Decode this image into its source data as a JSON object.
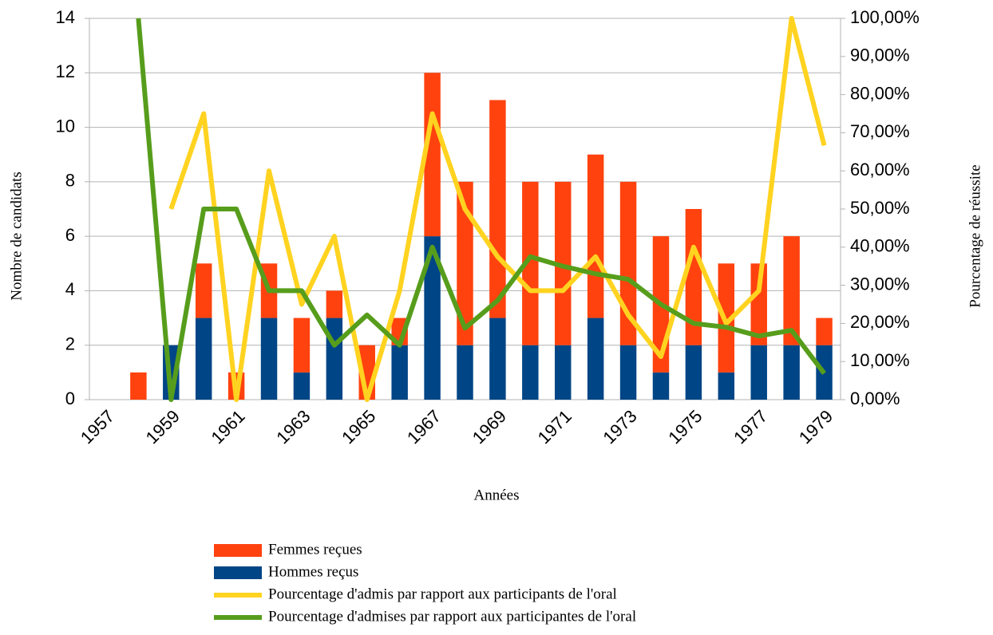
{
  "chart_data": {
    "type": "bar",
    "stacked": true,
    "xlabel": "Années",
    "ylabel": "Nombre de candidats",
    "y2label": "Pourcentage de réussite",
    "categories": [
      "1957",
      null,
      "1959",
      null,
      "1961",
      null,
      "1963",
      null,
      "1965",
      null,
      "1967",
      null,
      "1969",
      null,
      "1971",
      null,
      "1973",
      null,
      "1975",
      null,
      "1977",
      null,
      "1979"
    ],
    "series": [
      {
        "name": "Femmes reçues",
        "type": "bar",
        "color": "#ff420e",
        "values": [
          0,
          1,
          0,
          2,
          1,
          2,
          2,
          1,
          2,
          1,
          6,
          6,
          8,
          6,
          6,
          6,
          6,
          5,
          5,
          4,
          3,
          4,
          1
        ]
      },
      {
        "name": "Hommes reçus",
        "type": "bar",
        "color": "#004586",
        "values": [
          0,
          0,
          2,
          3,
          0,
          3,
          1,
          3,
          0,
          2,
          6,
          2,
          3,
          2,
          2,
          3,
          2,
          1,
          2,
          1,
          2,
          2,
          2
        ]
      },
      {
        "name": "Pourcentage d'admis par rapport aux participants de l'oral",
        "type": "line",
        "axis": "y2",
        "color": "#ffd320",
        "values": [
          null,
          null,
          50,
          75,
          0,
          60,
          25,
          42.86,
          0,
          28.57,
          75,
          50,
          37.5,
          28.57,
          28.57,
          37.5,
          22.2,
          11.3,
          40,
          20,
          28.57,
          100,
          66.67
        ]
      },
      {
        "name": "Pourcentage d'admises par rapport aux participantes de l'oral",
        "type": "line",
        "axis": "y2",
        "color": "#579d1c",
        "values": [
          null,
          100,
          0,
          50,
          50,
          28.57,
          28.57,
          14.29,
          22.22,
          14.29,
          40,
          18.75,
          26,
          37.5,
          35,
          33,
          31.58,
          25,
          20,
          19,
          16.7,
          18.18,
          6.9
        ]
      }
    ],
    "ylim": [
      0,
      14
    ],
    "yticks": [
      0,
      2,
      4,
      6,
      8,
      10,
      12,
      14
    ],
    "y2lim": [
      0,
      100
    ],
    "y2ticks": [
      {
        "value": 0,
        "label": "0,00%"
      },
      {
        "value": 10,
        "label": "10,00%"
      },
      {
        "value": 20,
        "label": "20,00%"
      },
      {
        "value": 30,
        "label": "30,00%"
      },
      {
        "value": 40,
        "label": "40,00%"
      },
      {
        "value": 50,
        "label": "50,00%"
      },
      {
        "value": 60,
        "label": "60,00%"
      },
      {
        "value": 70,
        "label": "70,00%"
      },
      {
        "value": 80,
        "label": "80,00%"
      },
      {
        "value": 90,
        "label": "90,00%"
      },
      {
        "value": 100,
        "label": "100,00%"
      }
    ],
    "grid": true,
    "legend": "bottom"
  }
}
